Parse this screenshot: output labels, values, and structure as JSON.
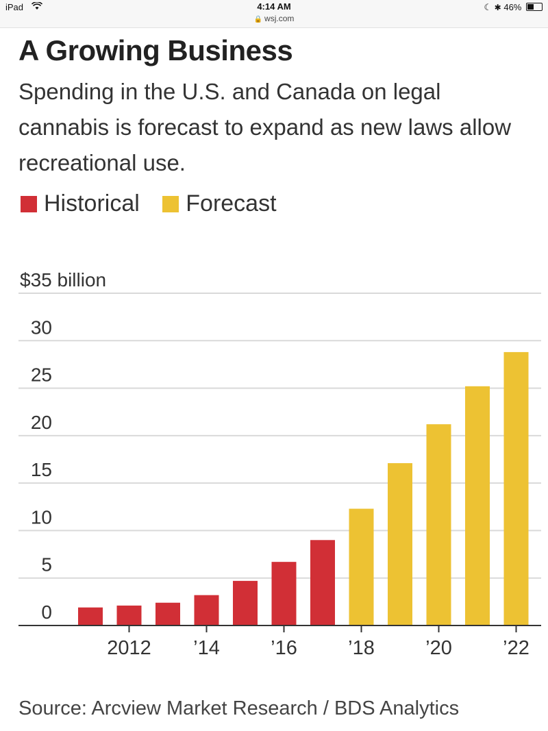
{
  "status_bar": {
    "device": "iPad",
    "time": "4:14 AM",
    "url": "wsj.com",
    "battery": "46%",
    "battery_level": 0.46
  },
  "title": "A Growing Business",
  "subtitle": "Spending in the U.S. and Canada on legal cannabis is forecast to expand as new laws allow recreational use.",
  "legend": [
    {
      "label": "Historical",
      "color": "#d12f36"
    },
    {
      "label": "Forecast",
      "color": "#edc233"
    }
  ],
  "chart_data": {
    "type": "bar",
    "categories": [
      "2011",
      "2012",
      "2013",
      "2014",
      "2015",
      "2016",
      "2017",
      "2018",
      "2019",
      "2020",
      "2021",
      "2022"
    ],
    "values": [
      1.9,
      2.1,
      2.4,
      3.2,
      4.7,
      6.7,
      9.0,
      12.3,
      17.1,
      21.2,
      25.2,
      28.8
    ],
    "kinds": [
      "Historical",
      "Historical",
      "Historical",
      "Historical",
      "Historical",
      "Historical",
      "Historical",
      "Forecast",
      "Forecast",
      "Forecast",
      "Forecast",
      "Forecast"
    ],
    "colors": {
      "Historical": "#d12f36",
      "Forecast": "#edc233"
    },
    "ylim": [
      0,
      35
    ],
    "y_ticks": [
      0,
      5,
      10,
      15,
      20,
      25,
      30,
      35
    ],
    "y_tick_labels": [
      "0",
      "5",
      "10",
      "15",
      "20",
      "25",
      "30",
      "$35 billion"
    ],
    "x_tick_labels": [
      {
        "category": "2012",
        "label": "2012"
      },
      {
        "category": "2014",
        "label": "’14"
      },
      {
        "category": "2016",
        "label": "’16"
      },
      {
        "category": "2018",
        "label": "’18"
      },
      {
        "category": "2020",
        "label": "’20"
      },
      {
        "category": "2022",
        "label": "’22"
      }
    ],
    "grid": true
  },
  "source": "Source: Arcview Market Research / BDS Analytics"
}
